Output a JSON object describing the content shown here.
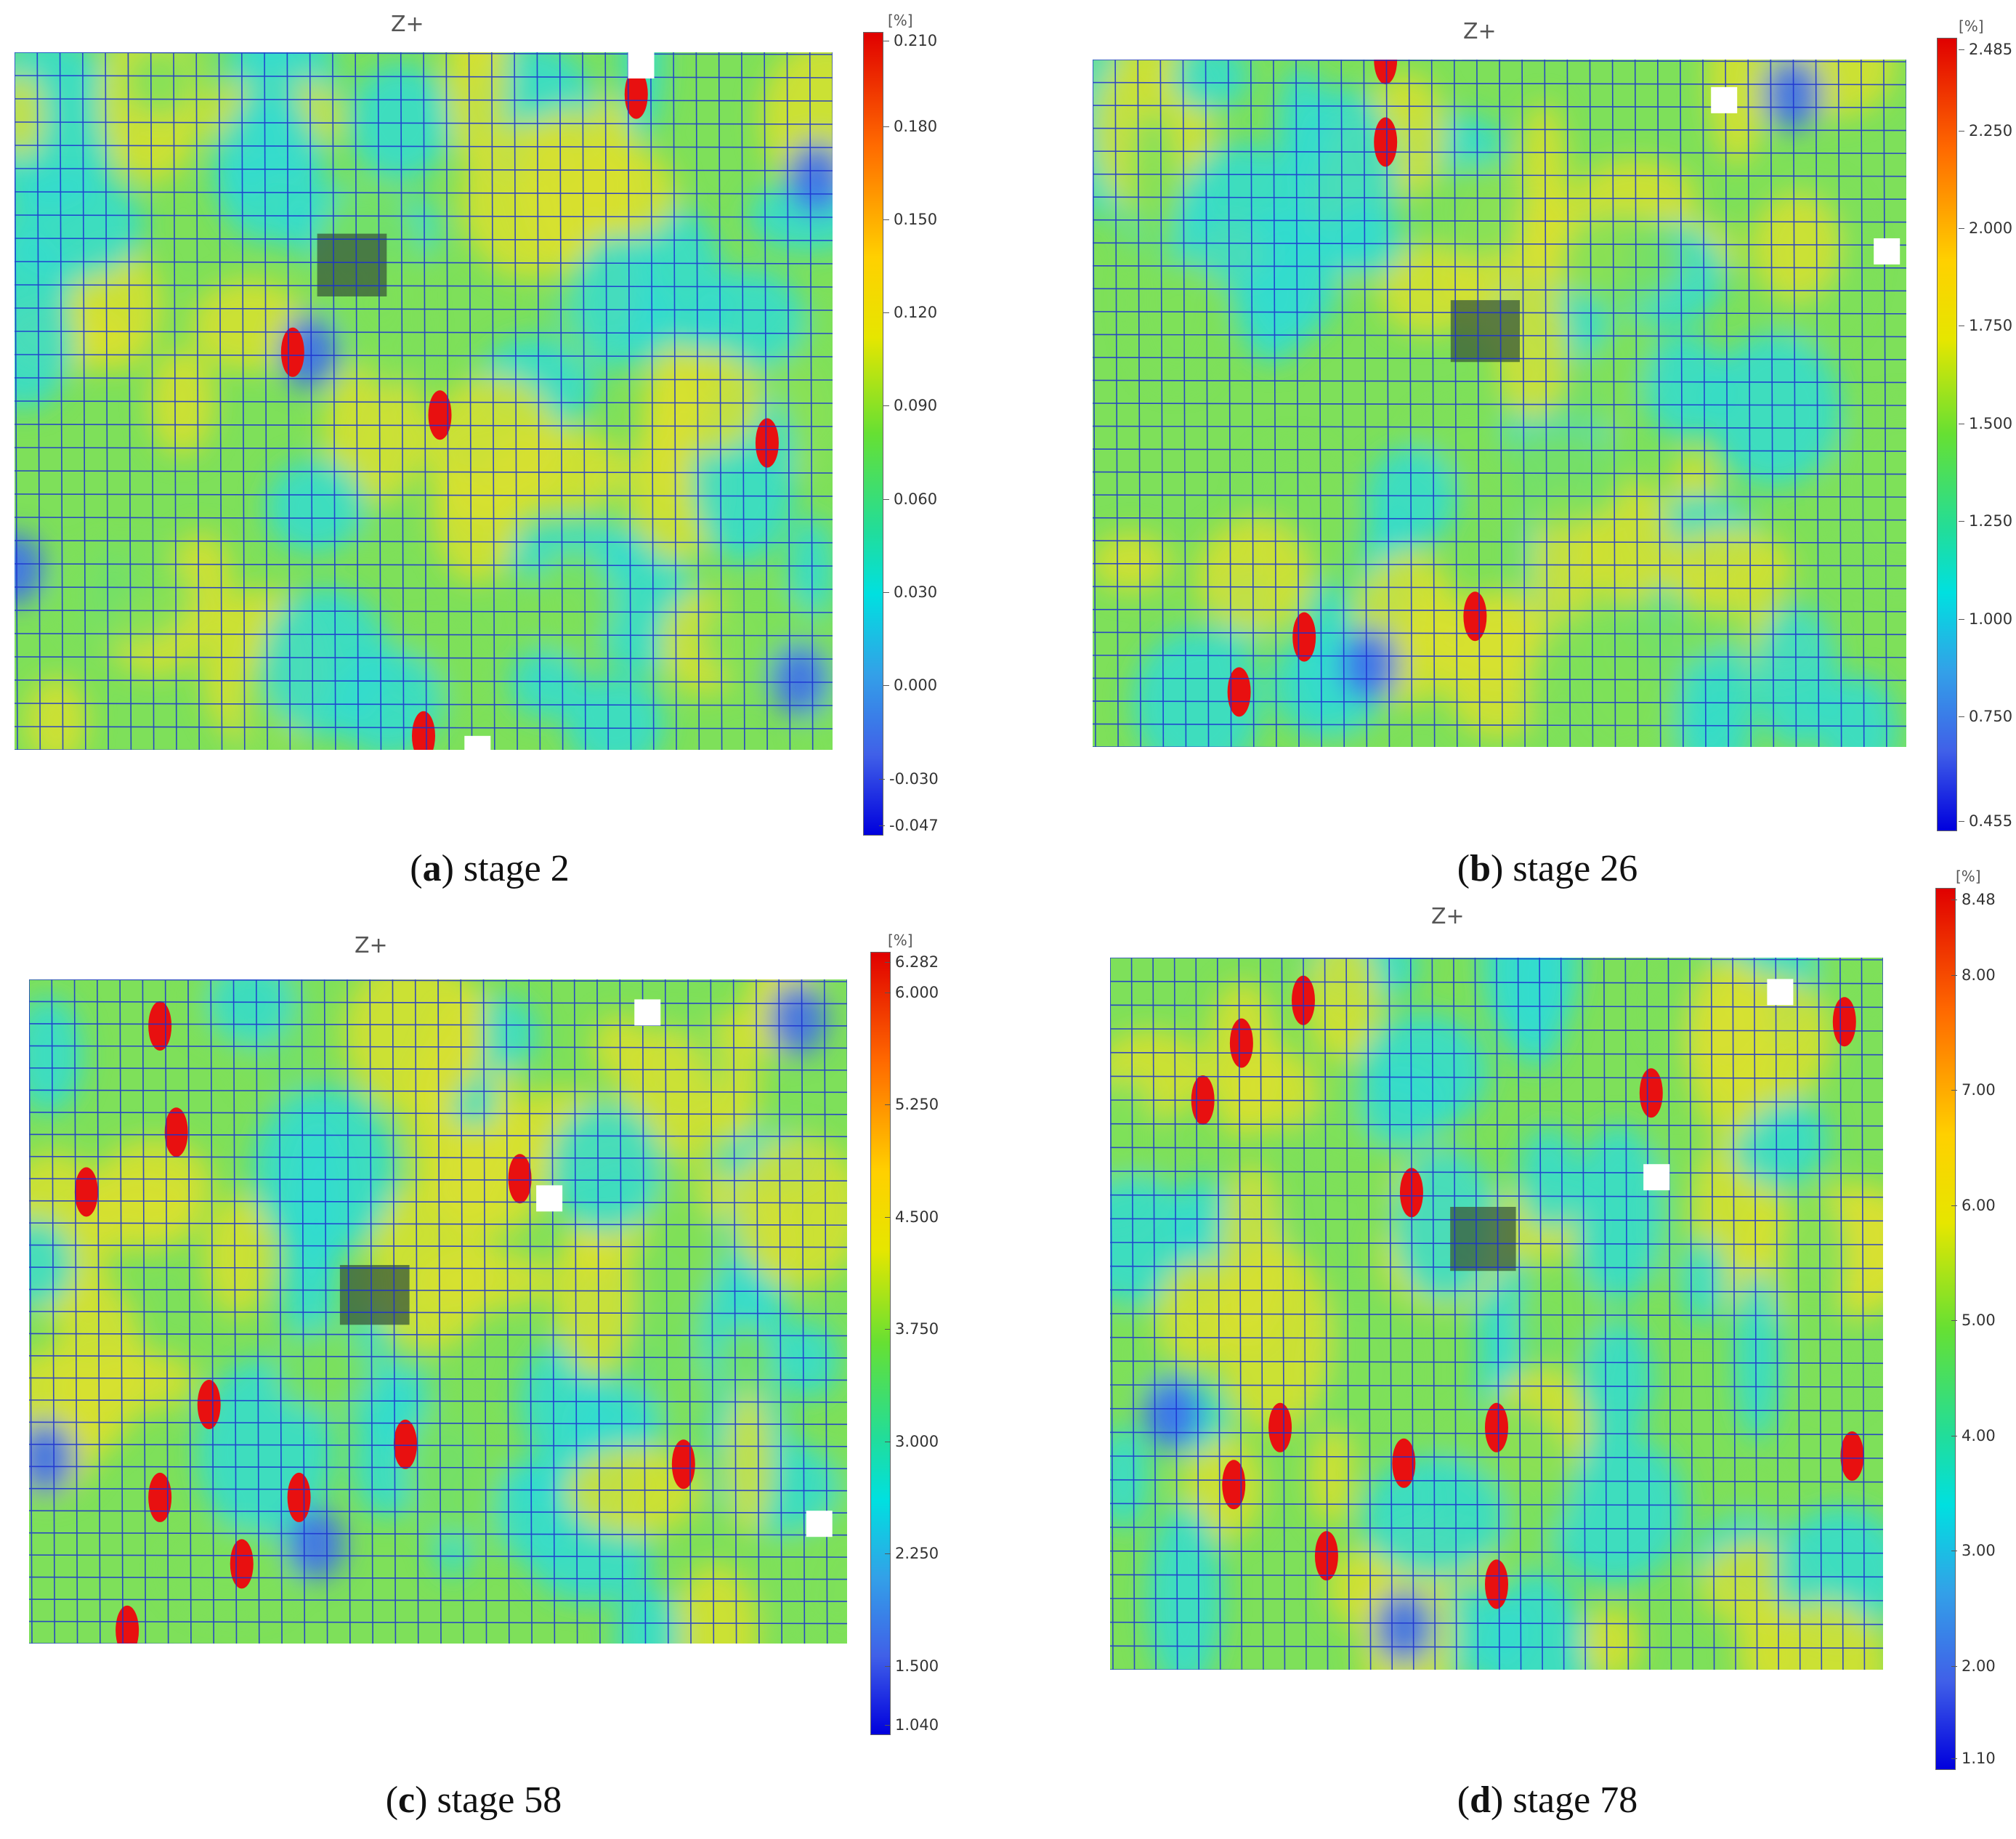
{
  "panels": [
    {
      "view_label": "Z+",
      "unit": "[%]",
      "ticks": [
        "0.210",
        "0.180",
        "0.150",
        "0.120",
        "0.090",
        "0.060",
        "0.030",
        "0.000",
        "-0.030",
        "-0.047"
      ],
      "caption_letter": "a",
      "caption_text": "stage 2"
    },
    {
      "view_label": "Z+",
      "unit": "[%]",
      "ticks": [
        "2.485",
        "2.250",
        "2.000",
        "1.750",
        "1.500",
        "1.250",
        "1.000",
        "0.750",
        "0.455"
      ],
      "caption_letter": "b",
      "caption_text": "stage 26"
    },
    {
      "view_label": "Z+",
      "unit": "[%]",
      "ticks": [
        "6.282",
        "6.000",
        "5.250",
        "4.500",
        "3.750",
        "3.000",
        "2.250",
        "1.500",
        "1.040"
      ],
      "caption_letter": "c",
      "caption_text": "stage 58"
    },
    {
      "view_label": "Z+",
      "unit": "[%]",
      "ticks": [
        "8.48",
        "8.00",
        "7.00",
        "6.00",
        "5.00",
        "4.00",
        "3.00",
        "2.00",
        "1.10"
      ],
      "caption_letter": "d",
      "caption_text": "stage 78"
    }
  ],
  "colors": {
    "grid_line": "#1a2fd0",
    "field_green": "#7ee05a",
    "field_cyan": "#33dcd0",
    "field_yellow": "#d8e030",
    "hotspot_red": "#e81010",
    "low_blue": "#3d6ef0",
    "dark_patch": "#3a5a3a"
  }
}
